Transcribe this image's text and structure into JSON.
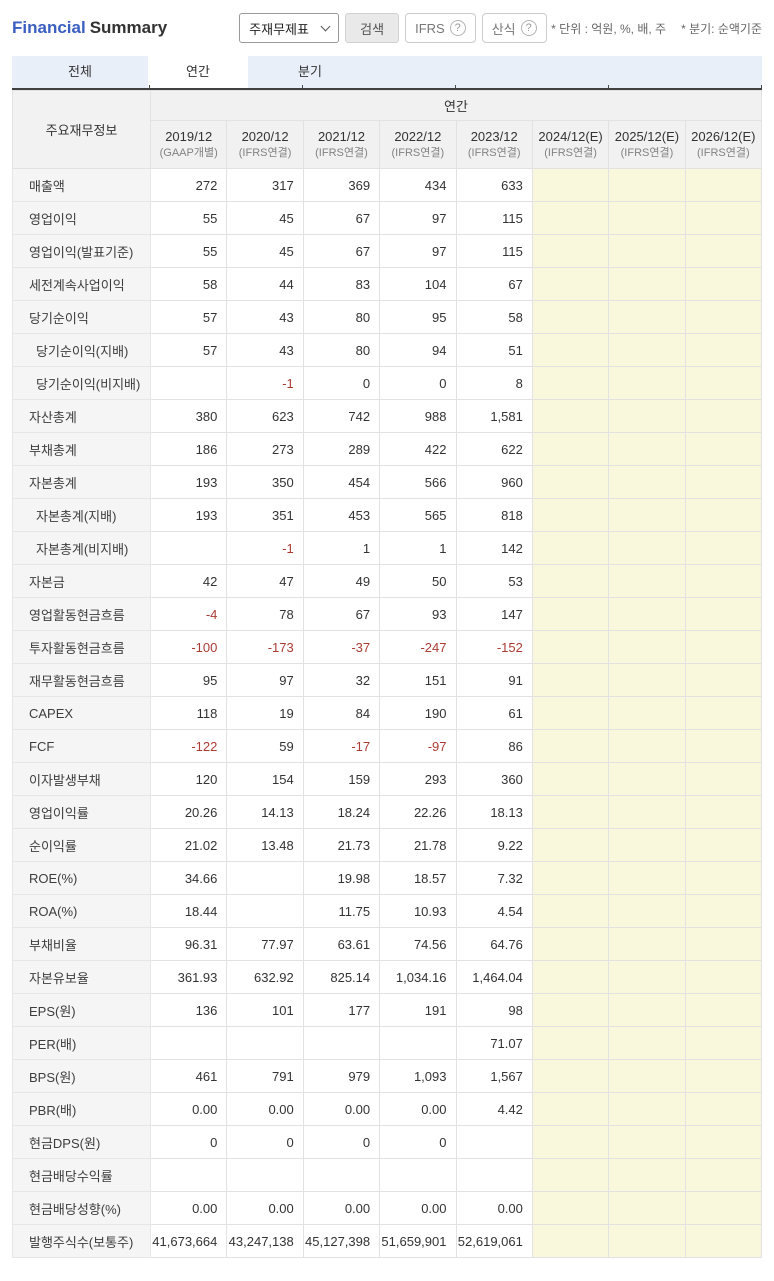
{
  "header": {
    "title_part1": "Financial",
    "title_part2": "Summary",
    "statement_select_value": "주재무제표",
    "search_label": "검색",
    "ifrs_label": "IFRS",
    "formula_label": "산식",
    "help_icon_glyph": "?",
    "unit_note": "* 단위 : 억원, %, 배, 주",
    "quarter_note": "* 분기: 순액기준"
  },
  "tabs": [
    {
      "label": "전체",
      "active": false
    },
    {
      "label": "연간",
      "active": true
    },
    {
      "label": "분기",
      "active": false
    }
  ],
  "table": {
    "corner_header": "주요재무정보",
    "group_header": "연간",
    "columns": [
      {
        "period": "2019/12",
        "basis": "(GAAP개별)",
        "estimate": false
      },
      {
        "period": "2020/12",
        "basis": "(IFRS연결)",
        "estimate": false
      },
      {
        "period": "2021/12",
        "basis": "(IFRS연결)",
        "estimate": false
      },
      {
        "period": "2022/12",
        "basis": "(IFRS연결)",
        "estimate": false
      },
      {
        "period": "2023/12",
        "basis": "(IFRS연결)",
        "estimate": false
      },
      {
        "period": "2024/12(E)",
        "basis": "(IFRS연결)",
        "estimate": true
      },
      {
        "period": "2025/12(E)",
        "basis": "(IFRS연결)",
        "estimate": true
      },
      {
        "period": "2026/12(E)",
        "basis": "(IFRS연결)",
        "estimate": true
      }
    ],
    "rows": [
      {
        "label": "매출액",
        "indent": false,
        "values": [
          "272",
          "317",
          "369",
          "434",
          "633",
          "",
          "",
          ""
        ]
      },
      {
        "label": "영업이익",
        "indent": false,
        "values": [
          "55",
          "45",
          "67",
          "97",
          "115",
          "",
          "",
          ""
        ]
      },
      {
        "label": "영업이익(발표기준)",
        "indent": false,
        "values": [
          "55",
          "45",
          "67",
          "97",
          "115",
          "",
          "",
          ""
        ]
      },
      {
        "label": "세전계속사업이익",
        "indent": false,
        "values": [
          "58",
          "44",
          "83",
          "104",
          "67",
          "",
          "",
          ""
        ]
      },
      {
        "label": "당기순이익",
        "indent": false,
        "values": [
          "57",
          "43",
          "80",
          "95",
          "58",
          "",
          "",
          ""
        ]
      },
      {
        "label": "당기순이익(지배)",
        "indent": true,
        "values": [
          "57",
          "43",
          "80",
          "94",
          "51",
          "",
          "",
          ""
        ]
      },
      {
        "label": "당기순이익(비지배)",
        "indent": true,
        "values": [
          "",
          "-1",
          "0",
          "0",
          "8",
          "",
          "",
          ""
        ]
      },
      {
        "label": "자산총계",
        "indent": false,
        "values": [
          "380",
          "623",
          "742",
          "988",
          "1,581",
          "",
          "",
          ""
        ]
      },
      {
        "label": "부채총계",
        "indent": false,
        "values": [
          "186",
          "273",
          "289",
          "422",
          "622",
          "",
          "",
          ""
        ]
      },
      {
        "label": "자본총계",
        "indent": false,
        "values": [
          "193",
          "350",
          "454",
          "566",
          "960",
          "",
          "",
          ""
        ]
      },
      {
        "label": "자본총계(지배)",
        "indent": true,
        "values": [
          "193",
          "351",
          "453",
          "565",
          "818",
          "",
          "",
          ""
        ]
      },
      {
        "label": "자본총계(비지배)",
        "indent": true,
        "values": [
          "",
          "-1",
          "1",
          "1",
          "142",
          "",
          "",
          ""
        ]
      },
      {
        "label": "자본금",
        "indent": false,
        "values": [
          "42",
          "47",
          "49",
          "50",
          "53",
          "",
          "",
          ""
        ]
      },
      {
        "label": "영업활동현금흐름",
        "indent": false,
        "values": [
          "-4",
          "78",
          "67",
          "93",
          "147",
          "",
          "",
          ""
        ]
      },
      {
        "label": "투자활동현금흐름",
        "indent": false,
        "values": [
          "-100",
          "-173",
          "-37",
          "-247",
          "-152",
          "",
          "",
          ""
        ]
      },
      {
        "label": "재무활동현금흐름",
        "indent": false,
        "values": [
          "95",
          "97",
          "32",
          "151",
          "91",
          "",
          "",
          ""
        ]
      },
      {
        "label": "CAPEX",
        "indent": false,
        "values": [
          "118",
          "19",
          "84",
          "190",
          "61",
          "",
          "",
          ""
        ]
      },
      {
        "label": "FCF",
        "indent": false,
        "values": [
          "-122",
          "59",
          "-17",
          "-97",
          "86",
          "",
          "",
          ""
        ]
      },
      {
        "label": "이자발생부채",
        "indent": false,
        "values": [
          "120",
          "154",
          "159",
          "293",
          "360",
          "",
          "",
          ""
        ]
      },
      {
        "label": "영업이익률",
        "indent": false,
        "values": [
          "20.26",
          "14.13",
          "18.24",
          "22.26",
          "18.13",
          "",
          "",
          ""
        ]
      },
      {
        "label": "순이익률",
        "indent": false,
        "values": [
          "21.02",
          "13.48",
          "21.73",
          "21.78",
          "9.22",
          "",
          "",
          ""
        ]
      },
      {
        "label": "ROE(%)",
        "indent": false,
        "values": [
          "34.66",
          "",
          "19.98",
          "18.57",
          "7.32",
          "",
          "",
          ""
        ]
      },
      {
        "label": "ROA(%)",
        "indent": false,
        "values": [
          "18.44",
          "",
          "11.75",
          "10.93",
          "4.54",
          "",
          "",
          ""
        ]
      },
      {
        "label": "부채비율",
        "indent": false,
        "values": [
          "96.31",
          "77.97",
          "63.61",
          "74.56",
          "64.76",
          "",
          "",
          ""
        ]
      },
      {
        "label": "자본유보율",
        "indent": false,
        "values": [
          "361.93",
          "632.92",
          "825.14",
          "1,034.16",
          "1,464.04",
          "",
          "",
          ""
        ]
      },
      {
        "label": "EPS(원)",
        "indent": false,
        "values": [
          "136",
          "101",
          "177",
          "191",
          "98",
          "",
          "",
          ""
        ]
      },
      {
        "label": "PER(배)",
        "indent": false,
        "values": [
          "",
          "",
          "",
          "",
          "71.07",
          "",
          "",
          ""
        ]
      },
      {
        "label": "BPS(원)",
        "indent": false,
        "values": [
          "461",
          "791",
          "979",
          "1,093",
          "1,567",
          "",
          "",
          ""
        ]
      },
      {
        "label": "PBR(배)",
        "indent": false,
        "values": [
          "0.00",
          "0.00",
          "0.00",
          "0.00",
          "4.42",
          "",
          "",
          ""
        ]
      },
      {
        "label": "현금DPS(원)",
        "indent": false,
        "values": [
          "0",
          "0",
          "0",
          "0",
          "",
          "",
          "",
          ""
        ]
      },
      {
        "label": "현금배당수익률",
        "indent": false,
        "values": [
          "",
          "",
          "",
          "",
          "",
          "",
          "",
          ""
        ]
      },
      {
        "label": "현금배당성향(%)",
        "indent": false,
        "values": [
          "0.00",
          "0.00",
          "0.00",
          "0.00",
          "0.00",
          "",
          "",
          ""
        ]
      },
      {
        "label": "발행주식수(보통주)",
        "indent": false,
        "values": [
          "41,673,664",
          "43,247,138",
          "45,127,398",
          "51,659,901",
          "52,619,061",
          "",
          "",
          ""
        ]
      }
    ]
  },
  "colors": {
    "title_accent": "#3b5fc0",
    "negative_value": "#ab3c33",
    "estimate_column_bg": "#faf8dc",
    "tabbar_bg": "#e9eff8",
    "header_cell_bg": "#f1f1f1",
    "row_label_bg": "#f5f5f5"
  }
}
